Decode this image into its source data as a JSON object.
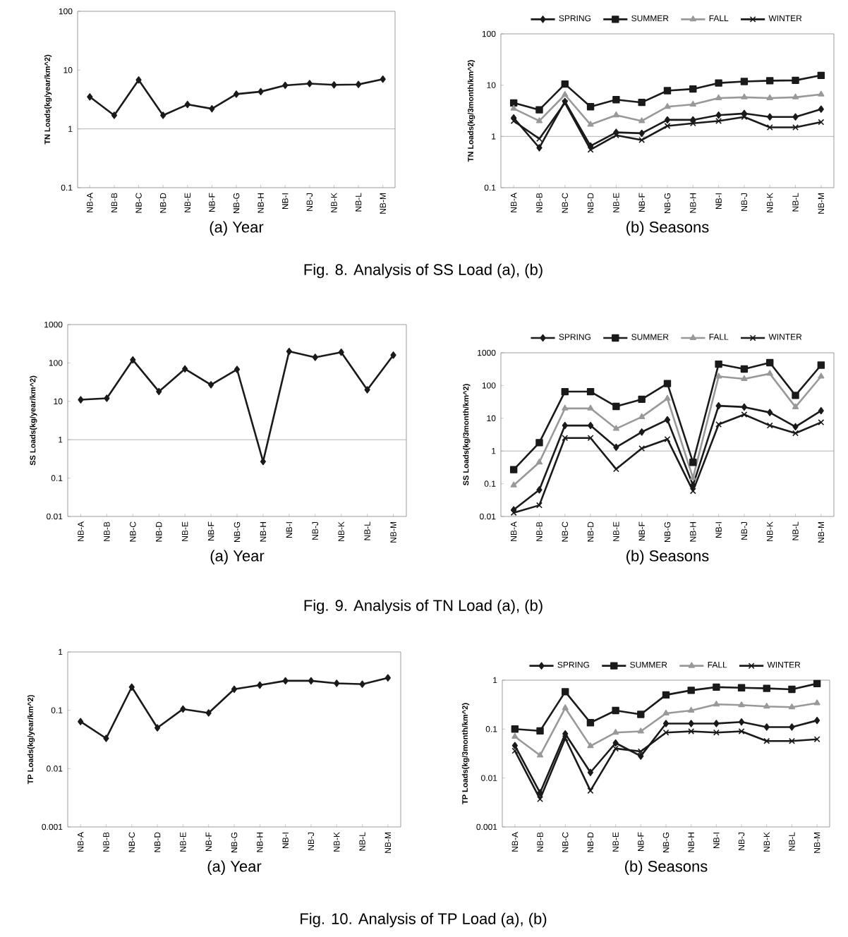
{
  "chart_data": [
    {
      "type": "line",
      "log": "y",
      "ylim": [
        0.1,
        100
      ],
      "yticks": [
        0.1,
        1,
        10,
        100
      ],
      "ylabel": "TN Loads(kg/year/km^2)",
      "xlabel": "(a)  Year",
      "categories": [
        "NB-A",
        "NB-B",
        "NB-C",
        "NB-D",
        "NB-E",
        "NB-F",
        "NB-G",
        "NB-H",
        "NB-I",
        "NB-J",
        "NB-K",
        "NB-L",
        "NB-M"
      ],
      "marker": "diamond",
      "ref_lines": [
        {
          "axis": "y",
          "value": 1,
          "color": "#a0a0a0"
        }
      ],
      "series": [
        {
          "color": "#1a1a1a",
          "values": [
            3.5,
            1.7,
            6.8,
            1.7,
            2.6,
            2.2,
            3.9,
            4.3,
            5.5,
            5.9,
            5.6,
            5.7,
            7.0
          ]
        }
      ],
      "annotations": [
        "Fig. 8. Analysis of SS Load (a), (b)"
      ]
    },
    {
      "type": "line",
      "log": "y",
      "ylim": [
        0.1,
        100
      ],
      "yticks": [
        0.1,
        1,
        10,
        100
      ],
      "ylabel": "TN Loads(kg/3month/km^2)",
      "xlabel": "(b)  Seasons",
      "categories": [
        "NB-A",
        "NB-B",
        "NB-C",
        "NB-D",
        "NB-E",
        "NB-F",
        "NB-G",
        "NB-H",
        "NB-I",
        "NB-J",
        "NB-K",
        "NB-L",
        "NB-M"
      ],
      "legend": "top",
      "ref_lines": [
        {
          "axis": "y",
          "value": 1,
          "color": "#a0a0a0"
        }
      ],
      "series": [
        {
          "name": "SPRING",
          "color": "#1a1a1a",
          "marker": "diamond",
          "values": [
            2.3,
            0.6,
            4.8,
            0.65,
            1.2,
            1.15,
            2.1,
            2.1,
            2.6,
            2.8,
            2.4,
            2.4,
            3.4
          ]
        },
        {
          "name": "SUMMER",
          "color": "#1a1a1a",
          "marker": "square",
          "values": [
            4.5,
            3.3,
            10.5,
            3.8,
            5.2,
            4.6,
            7.8,
            8.4,
            11,
            11.8,
            12.2,
            12.4,
            15.5
          ]
        },
        {
          "name": "FALL",
          "color": "#999999",
          "marker": "triangle",
          "values": [
            3.5,
            2.0,
            6.5,
            1.7,
            2.6,
            2.0,
            3.8,
            4.2,
            5.6,
            5.8,
            5.6,
            5.8,
            6.6
          ]
        },
        {
          "name": "WINTER",
          "color": "#1a1a1a",
          "marker": "cross",
          "values": [
            2.0,
            0.9,
            4.5,
            0.55,
            1.05,
            0.85,
            1.6,
            1.8,
            2.0,
            2.4,
            1.5,
            1.5,
            1.9
          ]
        }
      ]
    },
    {
      "type": "line",
      "log": "y",
      "ylim": [
        0.01,
        1000
      ],
      "yticks": [
        0.01,
        0.1,
        1,
        10,
        100,
        1000
      ],
      "ylabel": "SS Loads(kg/year/km^2)",
      "xlabel": "(a)  Year",
      "categories": [
        "NB-A",
        "NB-B",
        "NB-C",
        "NB-D",
        "NB-E",
        "NB-F",
        "NB-G",
        "NB-H",
        "NB-I",
        "NB-J",
        "NB-K",
        "NB-L",
        "NB-M"
      ],
      "marker": "diamond",
      "ref_lines": [
        {
          "axis": "y",
          "value": 1,
          "color": "#a0a0a0"
        }
      ],
      "series": [
        {
          "color": "#1a1a1a",
          "values": [
            11,
            12,
            120,
            18,
            70,
            27,
            68,
            0.27,
            200,
            140,
            190,
            20,
            160
          ]
        }
      ],
      "annotations": [
        "Fig. 9. Analysis of TN Load (a), (b)"
      ]
    },
    {
      "type": "line",
      "log": "y",
      "ylim": [
        0.01,
        1000
      ],
      "yticks": [
        0.01,
        0.1,
        1,
        10,
        100,
        1000
      ],
      "ylabel": "SS Loads(kg/3month/km^2)",
      "xlabel": "(b)  Seasons",
      "categories": [
        "NB-A",
        "NB-B",
        "NB-C",
        "NB-D",
        "NB-E",
        "NB-F",
        "NB-G",
        "NB-H",
        "NB-I",
        "NB-J",
        "NB-K",
        "NB-L",
        "NB-M"
      ],
      "legend": "top",
      "ref_lines": [
        {
          "axis": "y",
          "value": 1,
          "color": "#a0a0a0"
        }
      ],
      "series": [
        {
          "name": "SPRING",
          "color": "#1a1a1a",
          "marker": "diamond",
          "values": [
            0.016,
            0.065,
            6,
            6,
            1.3,
            3.8,
            9,
            0.09,
            24,
            22,
            15,
            5.5,
            17
          ]
        },
        {
          "name": "SUMMER",
          "color": "#1a1a1a",
          "marker": "square",
          "values": [
            0.27,
            1.8,
            65,
            65,
            23,
            38,
            115,
            0.45,
            450,
            320,
            500,
            50,
            420
          ]
        },
        {
          "name": "FALL",
          "color": "#999999",
          "marker": "triangle",
          "values": [
            0.09,
            0.45,
            20,
            20,
            4.8,
            11,
            40,
            0.15,
            190,
            160,
            230,
            22,
            190
          ]
        },
        {
          "name": "WINTER",
          "color": "#1a1a1a",
          "marker": "cross",
          "values": [
            0.013,
            0.022,
            2.5,
            2.5,
            0.28,
            1.2,
            2.3,
            0.06,
            6.5,
            13,
            6,
            3.5,
            7.5
          ]
        }
      ]
    },
    {
      "type": "line",
      "log": "y",
      "ylim": [
        0.001,
        1
      ],
      "yticks": [
        0.001,
        0.01,
        0.1,
        1
      ],
      "ylabel": "TP Loads(kg/year/km^2)",
      "xlabel": "(a)  Year",
      "categories": [
        "NB-A",
        "NB-B",
        "NB-C",
        "NB-D",
        "NB-E",
        "NB-F",
        "NB-G",
        "NB-H",
        "NB-I",
        "NB-J",
        "NB-K",
        "NB-L",
        "NB-M"
      ],
      "marker": "diamond",
      "series": [
        {
          "color": "#1a1a1a",
          "values": [
            0.064,
            0.033,
            0.25,
            0.05,
            0.105,
            0.09,
            0.23,
            0.27,
            0.32,
            0.32,
            0.29,
            0.28,
            0.36
          ]
        }
      ],
      "annotations": [
        "Fig. 10. Analysis of TP Load (a), (b)"
      ]
    },
    {
      "type": "line",
      "log": "y",
      "ylim": [
        0.001,
        1
      ],
      "yticks": [
        0.001,
        0.01,
        0.1,
        1
      ],
      "ylabel": "TP Loads(kg/3month/km^2)",
      "xlabel": "(b)  Seasons",
      "categories": [
        "NB-A",
        "NB-B",
        "NB-C",
        "NB-D",
        "NB-E",
        "NB-F",
        "NB-G",
        "NB-H",
        "NB-I",
        "NB-J",
        "NB-K",
        "NB-L",
        "NB-M"
      ],
      "legend": "top",
      "series": [
        {
          "name": "SPRING",
          "color": "#1a1a1a",
          "marker": "diamond",
          "values": [
            0.046,
            0.005,
            0.08,
            0.013,
            0.052,
            0.028,
            0.13,
            0.13,
            0.13,
            0.14,
            0.11,
            0.11,
            0.15
          ]
        },
        {
          "name": "SUMMER",
          "color": "#1a1a1a",
          "marker": "square",
          "values": [
            0.1,
            0.092,
            0.58,
            0.135,
            0.24,
            0.2,
            0.5,
            0.62,
            0.72,
            0.7,
            0.68,
            0.65,
            0.85
          ]
        },
        {
          "name": "FALL",
          "color": "#999999",
          "marker": "triangle",
          "values": [
            0.07,
            0.029,
            0.27,
            0.045,
            0.085,
            0.09,
            0.21,
            0.24,
            0.32,
            0.31,
            0.29,
            0.28,
            0.34
          ]
        },
        {
          "name": "WINTER",
          "color": "#1a1a1a",
          "marker": "cross",
          "values": [
            0.036,
            0.0037,
            0.065,
            0.0055,
            0.04,
            0.035,
            0.085,
            0.09,
            0.085,
            0.09,
            0.057,
            0.057,
            0.062
          ]
        }
      ]
    }
  ]
}
